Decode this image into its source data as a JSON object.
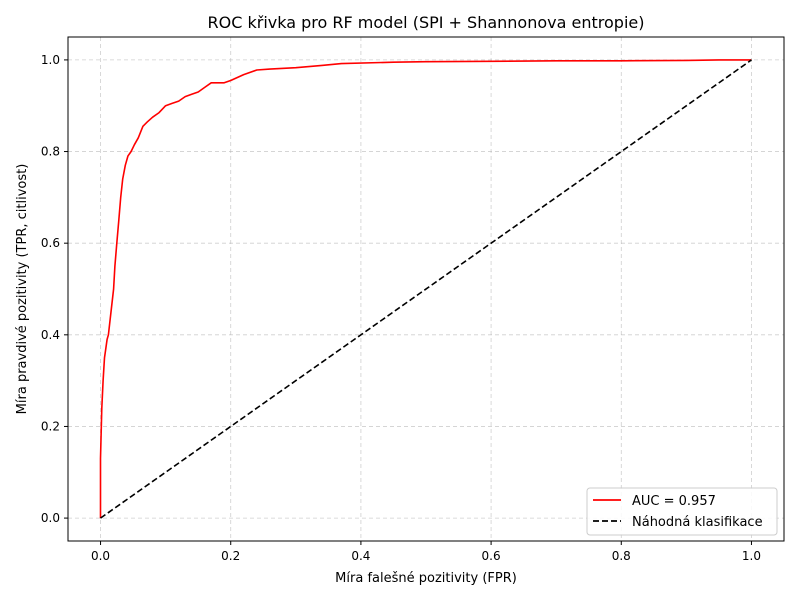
{
  "chart_data": {
    "type": "line",
    "title": "ROC křivka pro RF model (SPI + Shannonova entropie)",
    "xlabel": "Míra falešné pozitivity (FPR)",
    "ylabel": "Míra pravdivé pozitivity (TPR, citlivost)",
    "xlim": [
      -0.05,
      1.05
    ],
    "ylim": [
      -0.05,
      1.05
    ],
    "xticks": [
      "0.0",
      "0.2",
      "0.4",
      "0.6",
      "0.8",
      "1.0"
    ],
    "yticks": [
      "0.0",
      "0.2",
      "0.4",
      "0.6",
      "0.8",
      "1.0"
    ],
    "grid": true,
    "legend_position": "bottom-right",
    "series": [
      {
        "name": "AUC = 0.957",
        "color": "#ff0000",
        "style": "solid",
        "x": [
          0.0,
          0.0,
          0.002,
          0.004,
          0.006,
          0.008,
          0.01,
          0.012,
          0.016,
          0.02,
          0.022,
          0.025,
          0.028,
          0.031,
          0.034,
          0.038,
          0.042,
          0.047,
          0.052,
          0.058,
          0.065,
          0.072,
          0.08,
          0.09,
          0.1,
          0.11,
          0.12,
          0.13,
          0.14,
          0.15,
          0.16,
          0.17,
          0.18,
          0.19,
          0.2,
          0.22,
          0.24,
          0.26,
          0.3,
          0.34,
          0.37,
          0.45,
          0.5,
          0.6,
          0.7,
          0.8,
          0.9,
          0.95,
          1.0
        ],
        "y": [
          0.0,
          0.13,
          0.24,
          0.3,
          0.35,
          0.37,
          0.39,
          0.4,
          0.45,
          0.5,
          0.55,
          0.6,
          0.65,
          0.7,
          0.74,
          0.77,
          0.79,
          0.8,
          0.815,
          0.83,
          0.855,
          0.865,
          0.875,
          0.885,
          0.9,
          0.905,
          0.91,
          0.92,
          0.925,
          0.93,
          0.94,
          0.95,
          0.95,
          0.95,
          0.955,
          0.968,
          0.978,
          0.98,
          0.983,
          0.988,
          0.992,
          0.995,
          0.996,
          0.997,
          0.998,
          0.998,
          0.999,
          1.0,
          1.0
        ]
      },
      {
        "name": "Náhodná klasifikace",
        "color": "#000000",
        "style": "dashed",
        "x": [
          0.0,
          1.0
        ],
        "y": [
          0.0,
          1.0
        ]
      }
    ]
  }
}
